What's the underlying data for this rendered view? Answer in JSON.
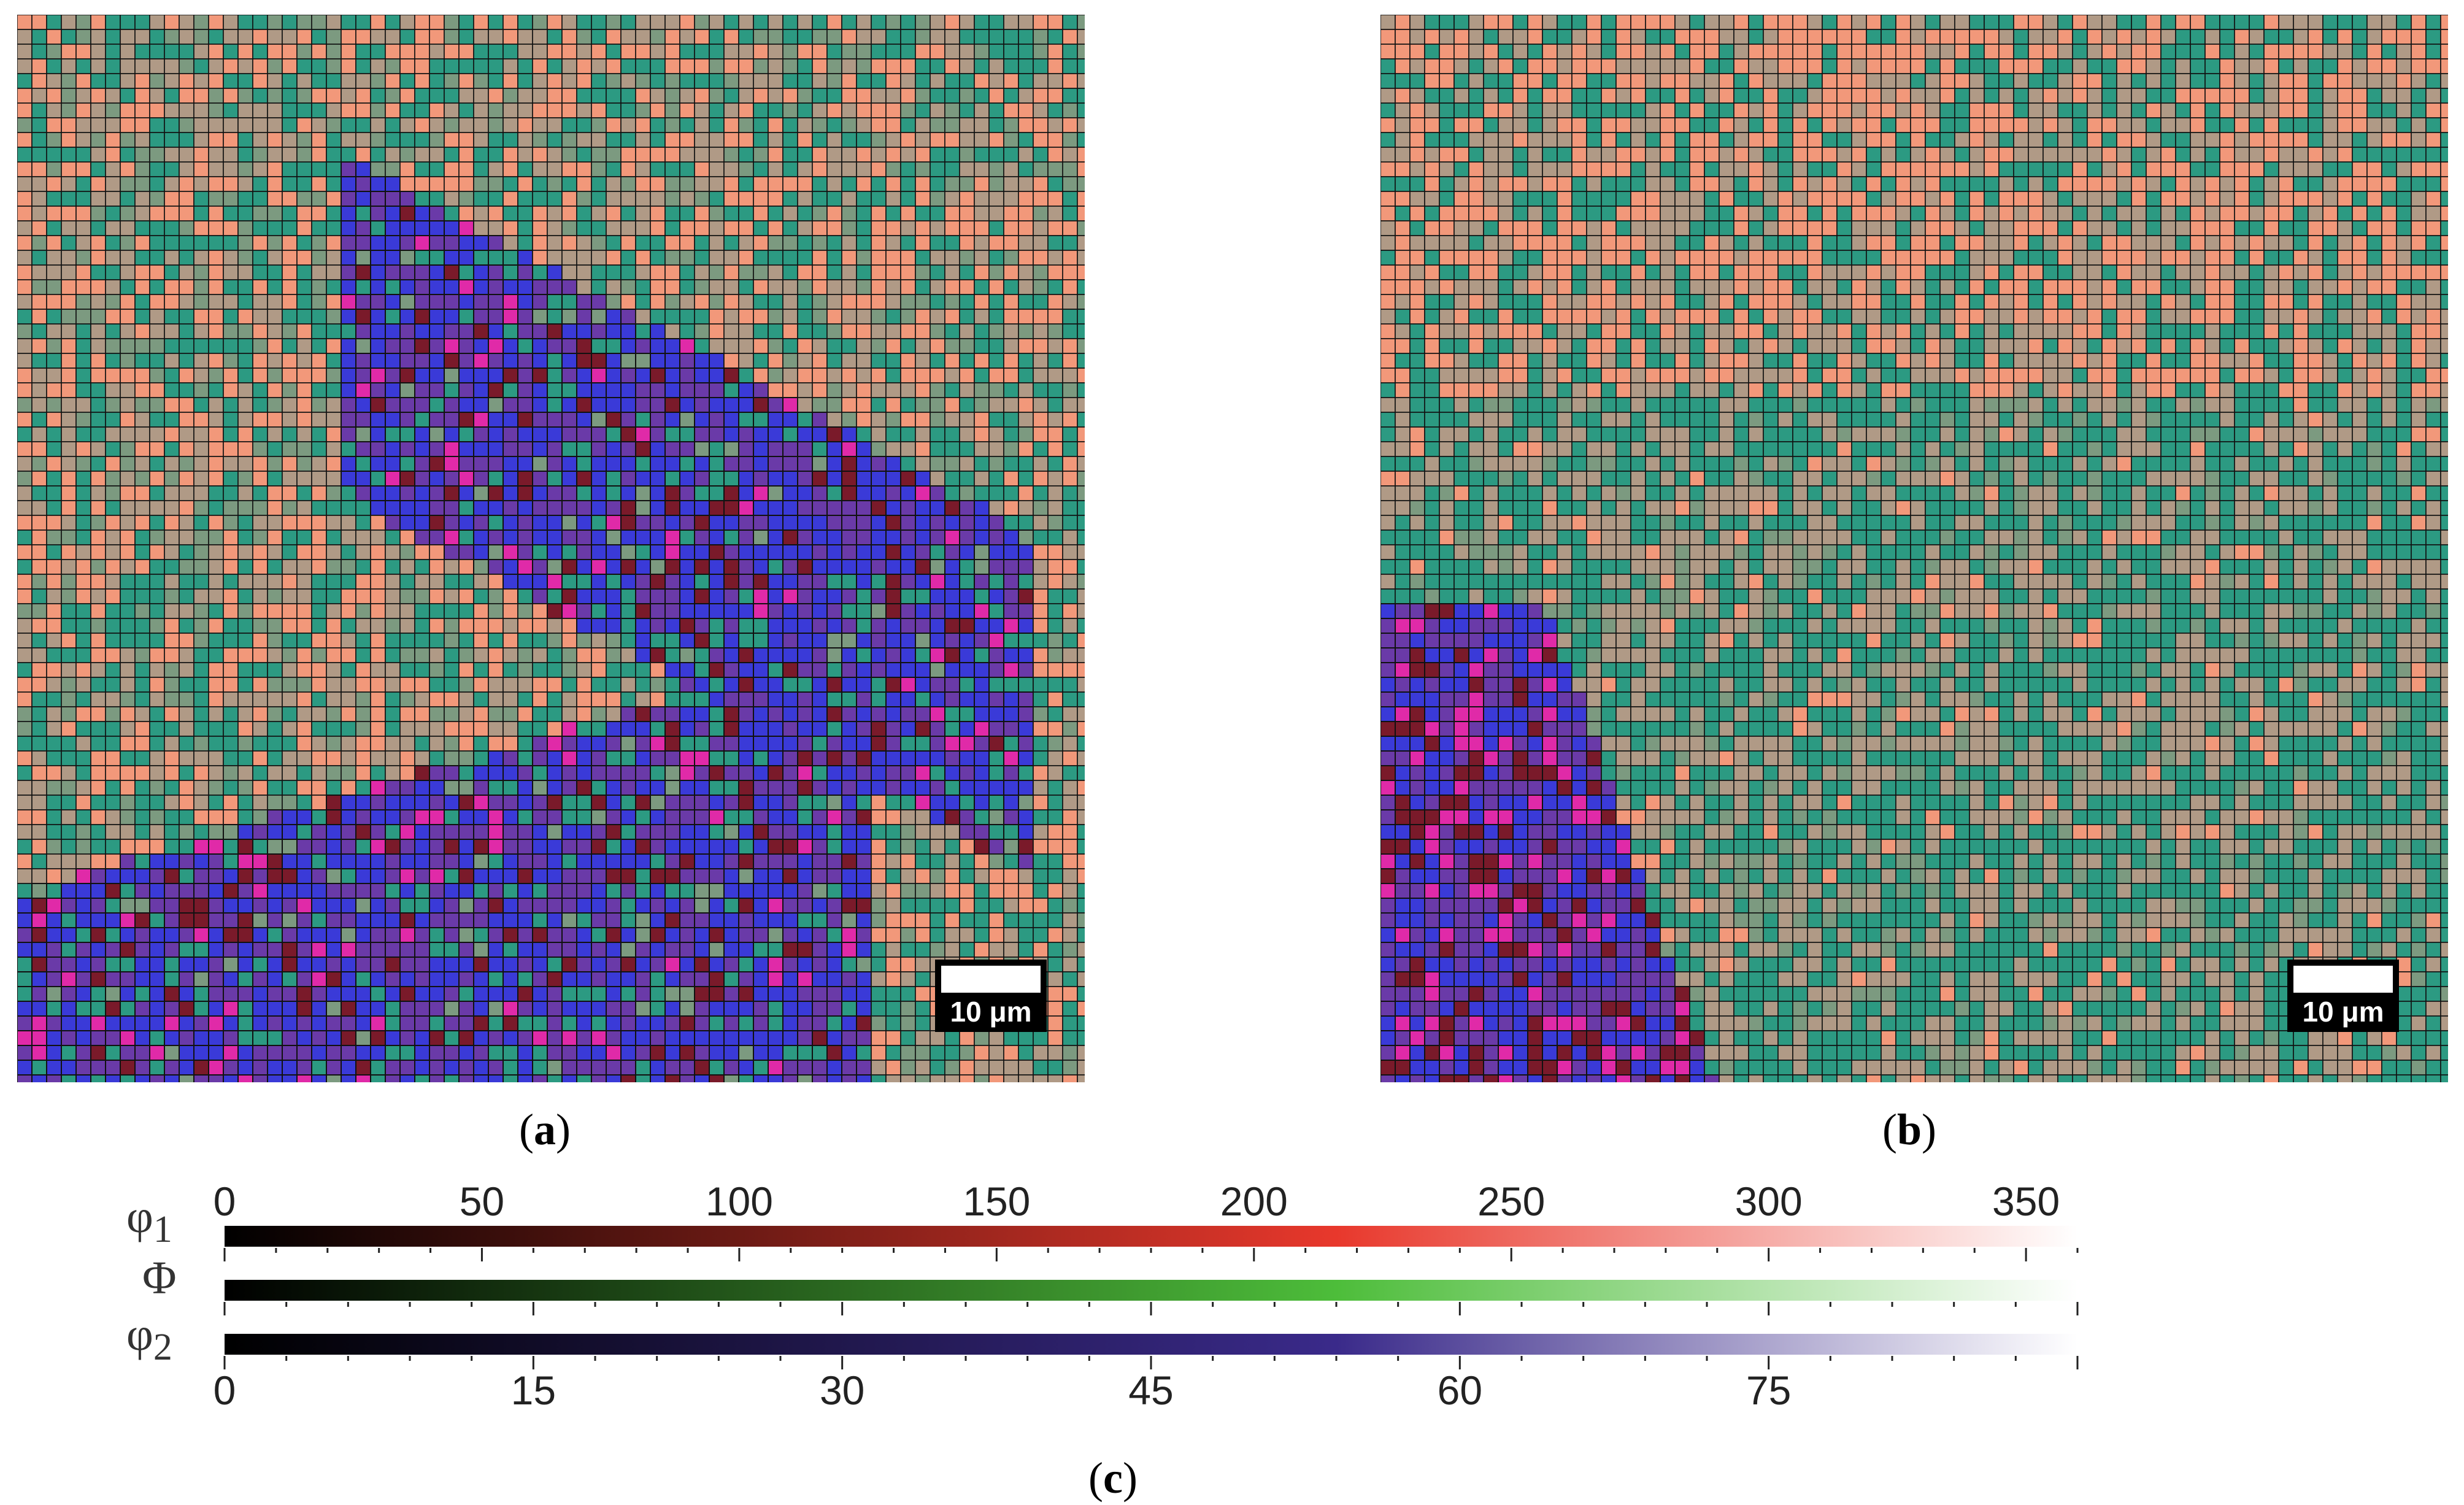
{
  "figure": {
    "panels": [
      {
        "id": "a",
        "label": "a",
        "scale_bar": "10 μm",
        "description": "EBSD Euler orientation map"
      },
      {
        "id": "b",
        "label": "b",
        "scale_bar": "10 μm",
        "description": "EBSD Euler orientation map"
      }
    ],
    "legend_label": "c"
  },
  "colorbars": [
    {
      "symbol": "φ",
      "subscript": "1",
      "ticks": [
        "0",
        "50",
        "100",
        "150",
        "200",
        "250",
        "300",
        "350"
      ],
      "max": 360,
      "color_end": "#e8382c"
    },
    {
      "symbol": "Φ",
      "subscript": "",
      "ticks": [],
      "max": 90,
      "color_end": "#4dbd3a"
    },
    {
      "symbol": "φ",
      "subscript": "2",
      "ticks": [
        "0",
        "15",
        "30",
        "45",
        "60",
        "75"
      ],
      "max": 90,
      "color_end": "#3a2a8a"
    }
  ],
  "colors": {
    "salmon": "#f2987a",
    "teal": "#2c9a82",
    "tan": "#b09a86",
    "sage": "#7c9a80",
    "blue": "#3a3ad8",
    "purple": "#6a3aa8",
    "magenta": "#e02aa8",
    "darkred": "#7a1a2a"
  }
}
